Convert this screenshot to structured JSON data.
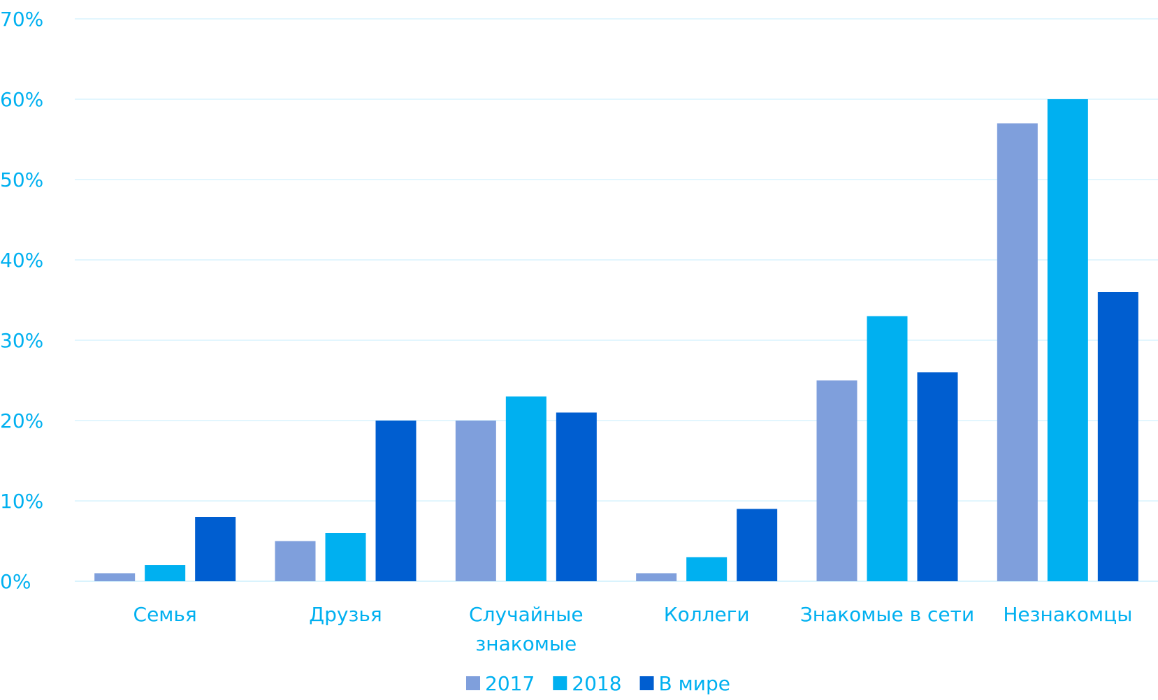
{
  "chart_data": {
    "type": "bar",
    "categories": [
      [
        "Семья"
      ],
      [
        "Друзья"
      ],
      [
        "Случайные",
        "знакомые"
      ],
      [
        "Коллеги"
      ],
      [
        "Знакомые в сети"
      ],
      [
        "Незнакомцы"
      ]
    ],
    "series": [
      {
        "name": "2017",
        "color": "#7f9fdc",
        "values": [
          1,
          5,
          20,
          1,
          25,
          57
        ]
      },
      {
        "name": "2018",
        "color": "#00b0f0",
        "values": [
          2,
          6,
          23,
          3,
          33,
          60
        ]
      },
      {
        "name": "В мире",
        "color": "#005ed0",
        "values": [
          8,
          20,
          21,
          9,
          26,
          36
        ]
      }
    ],
    "ylim": [
      0,
      70
    ],
    "yticks": [
      "0%",
      "10%",
      "20%",
      "30%",
      "40%",
      "50%",
      "60%",
      "70%"
    ],
    "ytick_values": [
      0,
      10,
      20,
      30,
      40,
      50,
      60,
      70
    ],
    "grid": true,
    "legend_position": "bottom",
    "text_color": "#00b0f0",
    "grid_color": "#d9f3fd"
  }
}
